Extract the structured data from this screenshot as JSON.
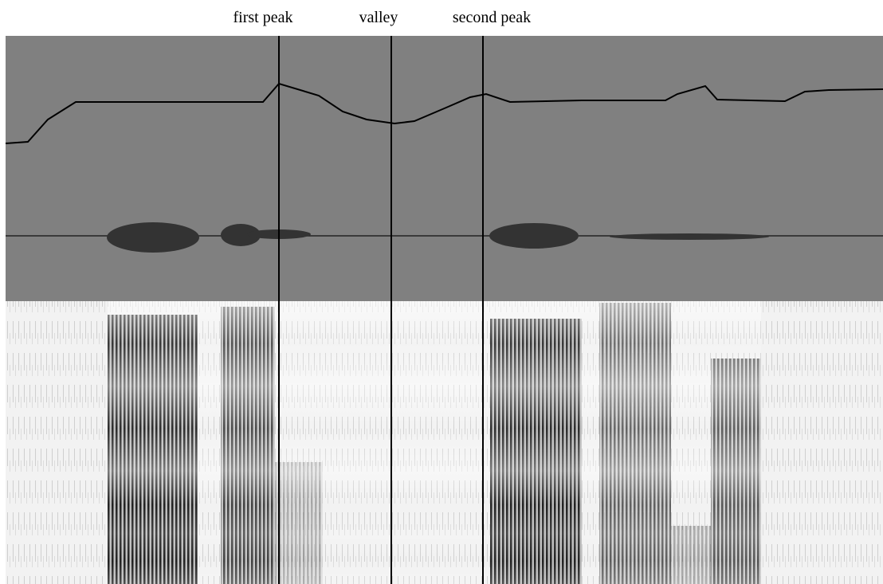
{
  "annotations": {
    "labels": [
      "first peak",
      "valley",
      "second peak"
    ]
  }
}
